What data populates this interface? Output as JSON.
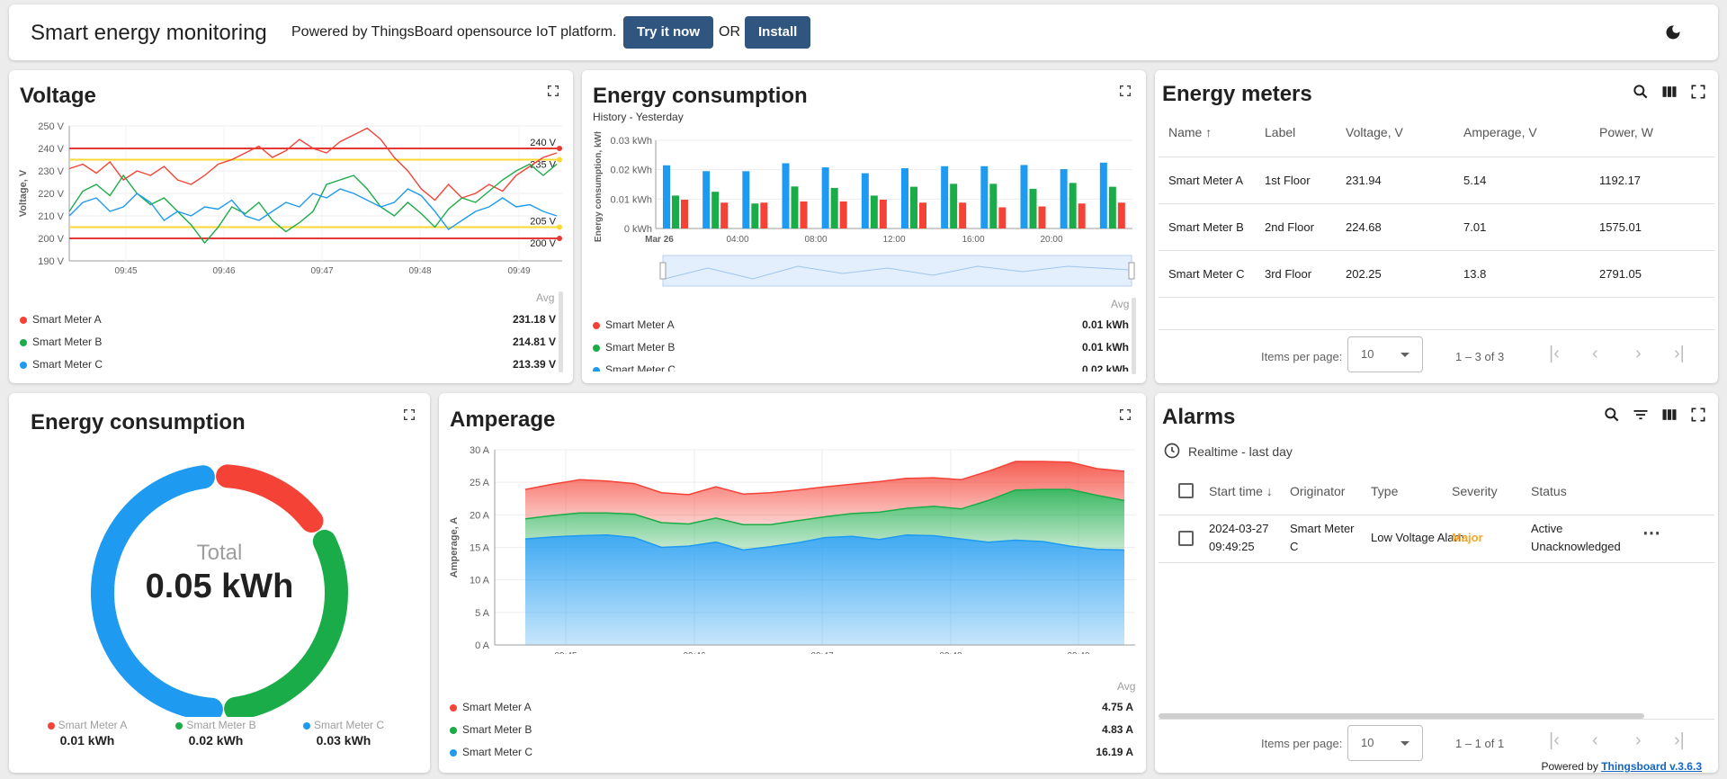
{
  "header": {
    "title": "Smart energy monitoring",
    "powered_text": "Powered by ThingsBoard opensource IoT platform.",
    "try_label": "Try it now",
    "or_label": "OR",
    "install_label": "Install",
    "theme_icon": "moon-icon"
  },
  "voltage": {
    "title": "Voltage",
    "avg_label": "Avg",
    "legend": [
      {
        "name": "Smart Meter A",
        "value": "231.18 V",
        "color": "#f44336"
      },
      {
        "name": "Smart Meter B",
        "value": "214.81 V",
        "color": "#1aac48"
      },
      {
        "name": "Smart Meter C",
        "value": "213.39 V",
        "color": "#1e9bf0"
      }
    ],
    "chart_data": {
      "type": "line",
      "ylabel": "Voltage, V",
      "ylim": [
        190,
        250
      ],
      "y_ticks": [
        "190 V",
        "200 V",
        "210 V",
        "220 V",
        "230 V",
        "240 V",
        "250 V"
      ],
      "x_ticks": [
        "09:45",
        "09:46",
        "09:47",
        "09:48",
        "09:49"
      ],
      "thresholds": [
        {
          "value": 240,
          "label": "240 V",
          "color": "#e53935"
        },
        {
          "value": 235,
          "label": "235 V",
          "color": "#fdd835"
        },
        {
          "value": 205,
          "label": "205 V",
          "color": "#fdd835"
        },
        {
          "value": 200,
          "label": "200 V",
          "color": "#e53935"
        }
      ],
      "series": [
        {
          "name": "Smart Meter A",
          "color": "#f44336",
          "values": [
            231,
            233,
            229,
            234,
            226,
            230,
            228,
            232,
            226,
            224,
            228,
            233,
            235,
            238,
            241,
            236,
            239,
            244,
            240,
            238,
            243,
            246,
            249,
            244,
            236,
            230,
            222,
            217,
            224,
            218,
            220,
            224,
            221,
            228,
            232,
            236,
            238
          ]
        },
        {
          "name": "Smart Meter B",
          "color": "#1aac48",
          "values": [
            212,
            221,
            224,
            219,
            228,
            220,
            215,
            218,
            212,
            206,
            198,
            205,
            214,
            211,
            216,
            208,
            203,
            207,
            212,
            224,
            226,
            228,
            222,
            214,
            210,
            216,
            211,
            205,
            213,
            218,
            216,
            221,
            226,
            230,
            233,
            228,
            233
          ]
        },
        {
          "name": "Smart Meter C",
          "color": "#1e9bf0",
          "values": [
            210,
            216,
            218,
            212,
            214,
            220,
            216,
            208,
            212,
            210,
            214,
            213,
            217,
            210,
            208,
            212,
            216,
            214,
            220,
            218,
            222,
            220,
            217,
            214,
            216,
            222,
            219,
            212,
            204,
            208,
            212,
            214,
            218,
            214,
            215,
            212,
            210
          ]
        }
      ]
    }
  },
  "energy_bar": {
    "title": "Energy consumption",
    "subtitle": "History - Yesterday",
    "avg_label": "Avg",
    "legend": [
      {
        "name": "Smart Meter A",
        "value": "0.01 kWh",
        "color": "#f44336"
      },
      {
        "name": "Smart Meter B",
        "value": "0.01 kWh",
        "color": "#1aac48"
      },
      {
        "name": "Smart Meter C",
        "value": "0.02 kWh",
        "color": "#1e9bf0"
      }
    ],
    "chart_data": {
      "type": "bar",
      "ylabel": "Energy consumption, kWh",
      "ylim": [
        0,
        0.03
      ],
      "y_ticks": [
        "0 kWh",
        "0.01 kWh",
        "0.02 kWh",
        "0.03 kWh"
      ],
      "x_ticks": [
        "Mar 26",
        "04:00",
        "08:00",
        "12:00",
        "16:00",
        "20:00"
      ],
      "series": [
        {
          "name": "Smart Meter C",
          "color": "#1e9bf0",
          "values": [
            0.0215,
            0.0195,
            0.0195,
            0.0222,
            0.0208,
            0.0188,
            0.0205,
            0.0212,
            0.0212,
            0.0216,
            0.0202,
            0.0224
          ]
        },
        {
          "name": "Smart Meter B",
          "color": "#1aac48",
          "values": [
            0.0112,
            0.0125,
            0.0085,
            0.0143,
            0.0138,
            0.0112,
            0.0142,
            0.0152,
            0.0152,
            0.0135,
            0.0155,
            0.0142
          ]
        },
        {
          "name": "Smart Meter A",
          "color": "#f44336",
          "values": [
            0.0098,
            0.0088,
            0.0088,
            0.0092,
            0.0092,
            0.0098,
            0.0088,
            0.0088,
            0.0072,
            0.0075,
            0.0085,
            0.0088
          ]
        }
      ]
    }
  },
  "meters": {
    "title": "Energy meters",
    "columns": [
      "Name",
      "Label",
      "Voltage, V",
      "Amperage, V",
      "Power, W"
    ],
    "rows": [
      [
        "Smart Meter A",
        "1st Floor",
        "231.94",
        "5.14",
        "1192.17"
      ],
      [
        "Smart Meter B",
        "2nd Floor",
        "224.68",
        "7.01",
        "1575.01"
      ],
      [
        "Smart Meter C",
        "3rd Floor",
        "202.25",
        "13.8",
        "2791.05"
      ]
    ],
    "items_per_page_label": "Items per page:",
    "items_per_page": "10",
    "range": "1 – 3 of 3"
  },
  "donut": {
    "title": "Energy consumption",
    "total_label": "Total",
    "total_value": "0.05 kWh",
    "legend": [
      {
        "name": "Smart Meter A",
        "value": "0.01 kWh",
        "color": "#f44336"
      },
      {
        "name": "Smart Meter B",
        "value": "0.02 kWh",
        "color": "#1aac48"
      },
      {
        "name": "Smart Meter C",
        "value": "0.03 kWh",
        "color": "#1e9bf0"
      }
    ],
    "chart_data": {
      "type": "pie",
      "categories": [
        "Smart Meter A",
        "Smart Meter B",
        "Smart Meter C"
      ],
      "values": [
        0.01,
        0.02,
        0.03
      ]
    }
  },
  "amperage": {
    "title": "Amperage",
    "avg_label": "Avg",
    "legend": [
      {
        "name": "Smart Meter A",
        "value": "4.75 A",
        "color": "#f44336"
      },
      {
        "name": "Smart Meter B",
        "value": "4.83 A",
        "color": "#1aac48"
      },
      {
        "name": "Smart Meter C",
        "value": "16.19 A",
        "color": "#1e9bf0"
      }
    ],
    "chart_data": {
      "type": "area",
      "ylabel": "Amperage, A",
      "ylim": [
        0,
        30
      ],
      "y_ticks": [
        "0 A",
        "5 A",
        "10 A",
        "15 A",
        "20 A",
        "25 A",
        "30 A"
      ],
      "x_ticks": [
        "09:45",
        "09:46",
        "09:47",
        "09:48",
        "09:49"
      ],
      "stacked": true,
      "series": [
        {
          "name": "Smart Meter C",
          "color": "#1e9bf0",
          "values": [
            16.3,
            16.6,
            16.8,
            16.9,
            16.5,
            15.0,
            15.2,
            15.8,
            14.6,
            15.1,
            15.7,
            16.5,
            16.7,
            16.2,
            16.9,
            16.8,
            16.3,
            15.8,
            16.1,
            15.9,
            15.2,
            14.7,
            14.6
          ]
        },
        {
          "name": "Smart Meter B",
          "color": "#1aac48",
          "values": [
            3.1,
            3.3,
            3.5,
            3.4,
            3.6,
            3.8,
            3.4,
            3.7,
            3.9,
            3.4,
            3.4,
            3.2,
            3.5,
            4.2,
            4.1,
            4.5,
            4.6,
            6.4,
            7.7,
            8.0,
            8.7,
            8.3,
            7.6
          ]
        },
        {
          "name": "Smart Meter A",
          "color": "#f44336",
          "values": [
            4.5,
            4.8,
            5.1,
            4.9,
            4.7,
            4.6,
            4.5,
            4.8,
            4.7,
            4.9,
            4.7,
            4.6,
            4.5,
            4.7,
            4.6,
            4.4,
            4.5,
            4.5,
            4.4,
            4.3,
            4.2,
            4.1,
            4.5
          ]
        }
      ]
    }
  },
  "alarms": {
    "title": "Alarms",
    "time_label": "Realtime - last day",
    "columns": [
      "Start time",
      "Originator",
      "Type",
      "Severity",
      "Status"
    ],
    "rows": [
      {
        "start_date": "2024-03-27",
        "start_time": "09:49:25",
        "originator_1": "Smart Meter",
        "originator_2": "C",
        "type": "Low Voltage Alarm",
        "severity": "Major",
        "status_1": "Active",
        "status_2": "Unacknowledged"
      }
    ],
    "items_per_page_label": "Items per page:",
    "items_per_page": "10",
    "range": "1 – 1 of 1",
    "footer_prefix": "Powered by ",
    "footer_link": "Thingsboard v.3.6.3"
  }
}
